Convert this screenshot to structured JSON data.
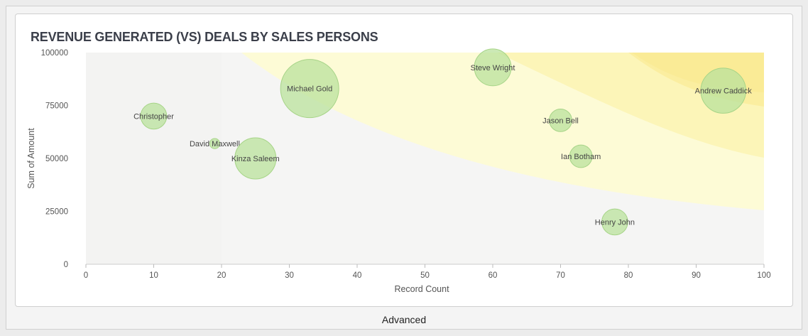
{
  "chart_data": {
    "type": "scatter",
    "title": "REVENUE GENERATED (VS) DEALS BY SALES PERSONS",
    "xlabel": "Record Count",
    "ylabel": "Sum of Amount",
    "xlim": [
      0,
      100
    ],
    "ylim": [
      0,
      100000
    ],
    "xticks": [
      0,
      10,
      20,
      30,
      40,
      50,
      60,
      70,
      80,
      90,
      100
    ],
    "yticks": [
      0,
      25000,
      50000,
      75000,
      100000
    ],
    "points": [
      {
        "name": "Christopher",
        "x": 10,
        "y": 70000,
        "size": 2
      },
      {
        "name": "David Maxwell",
        "x": 19,
        "y": 57000,
        "size": 0.3
      },
      {
        "name": "Kinza Saleem",
        "x": 25,
        "y": 50000,
        "size": 5
      },
      {
        "name": "Michael Gold",
        "x": 33,
        "y": 83000,
        "size": 10
      },
      {
        "name": "Steve Wright",
        "x": 60,
        "y": 93000,
        "size": 4
      },
      {
        "name": "Jason Bell",
        "x": 70,
        "y": 68000,
        "size": 1.5
      },
      {
        "name": "Ian Botham",
        "x": 73,
        "y": 51000,
        "size": 1.5
      },
      {
        "name": "Henry John",
        "x": 78,
        "y": 20000,
        "size": 2
      },
      {
        "name": "Andrew Caddick",
        "x": 94,
        "y": 82000,
        "size": 6
      }
    ],
    "bubble_color": "#b9e29c",
    "grid": false
  },
  "footer": {
    "label": "Advanced"
  }
}
